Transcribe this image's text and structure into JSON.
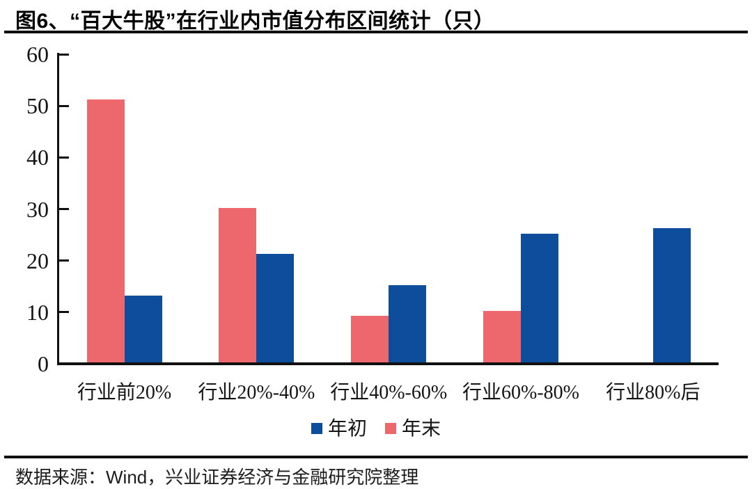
{
  "header": {
    "title": "图6、“百大牛股”在行业内市值分布区间统计（只）"
  },
  "chart_data": {
    "type": "bar",
    "title": "“百大牛股”在行业内市值分布区间统计（只）",
    "categories": [
      "行业前20%",
      "行业20%-40%",
      "行业40%-60%",
      "行业60%-80%",
      "行业80%后"
    ],
    "series": [
      {
        "id": "year-end",
        "name": "年末",
        "color": "#ED686D",
        "values": [
          51,
          30,
          9,
          10,
          0
        ]
      },
      {
        "id": "year-start",
        "name": "年初",
        "color": "#0D4D9C",
        "values": [
          13,
          21,
          15,
          25,
          26
        ]
      }
    ],
    "xlabel": "",
    "ylabel": "",
    "ylim": [
      0,
      60
    ],
    "yticks": [
      0,
      10,
      20,
      30,
      40,
      50,
      60
    ],
    "grid": false,
    "legend_position": "bottom"
  },
  "legend": {
    "items": [
      {
        "id": "year-start",
        "label": "年初",
        "color": "#0D4D9C"
      },
      {
        "id": "year-end",
        "label": "年末",
        "color": "#ED686D"
      }
    ]
  },
  "footer": {
    "source": "数据来源：Wind，兴业证券经济与金融研究院整理"
  }
}
